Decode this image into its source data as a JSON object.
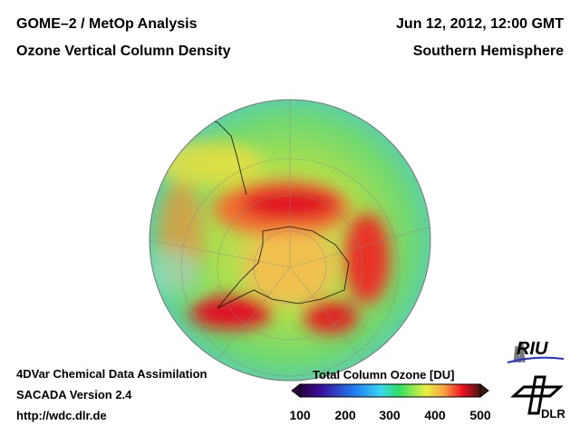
{
  "header": {
    "title_left_1": "GOME–2 / MetOp Analysis",
    "title_left_2": "Ozone Vertical Column Density",
    "title_right_1": "Jun 12, 2012, 12:00 GMT",
    "title_right_2": "Southern Hemisphere"
  },
  "footer": {
    "line1": "4DVar Chemical Data Assimilation",
    "line2": "SACADA Version 2.4",
    "line3": "http://wdc.dlr.de"
  },
  "colorbar": {
    "title": "Total Column Ozone [DU]",
    "ticks": [
      "100",
      "200",
      "300",
      "400",
      "500"
    ],
    "colors": [
      "#2a0040",
      "#3a10a0",
      "#1e7cf0",
      "#38d8f0",
      "#30e060",
      "#e8f040",
      "#f8a040",
      "#f01020",
      "#4a1810"
    ]
  },
  "logos": {
    "riu": "RIU",
    "dlr": "DLR"
  }
}
